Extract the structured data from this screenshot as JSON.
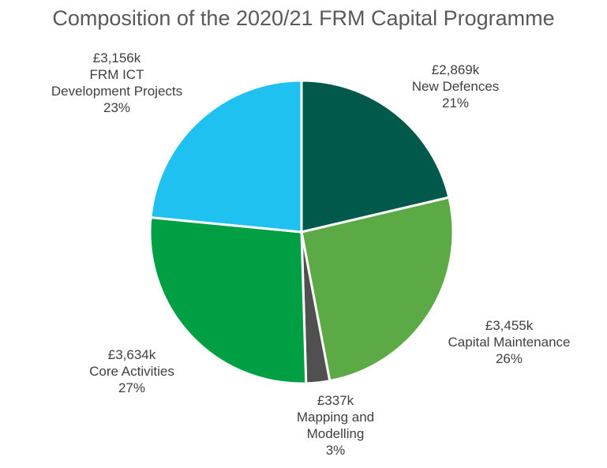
{
  "chart_data": {
    "type": "pie",
    "title": "Composition of the 2020/21 FRM Capital Programme",
    "slices": [
      {
        "label_lines": [
          "£2,869k",
          "New Defences",
          "21%"
        ],
        "value": 2869,
        "percent": 21,
        "color": "#00594A"
      },
      {
        "label_lines": [
          "£3,455k",
          "Capital Maintenance",
          "26%"
        ],
        "value": 3455,
        "percent": 26,
        "color": "#5BAA46"
      },
      {
        "label_lines": [
          "£337k",
          "Mapping and",
          "Modelling",
          "3%"
        ],
        "value": 337,
        "percent": 3,
        "color": "#505050"
      },
      {
        "label_lines": [
          "£3,634k",
          "Core Activities",
          "27%"
        ],
        "value": 3634,
        "percent": 27,
        "color": "#009F44"
      },
      {
        "label_lines": [
          "£3,156k",
          "FRM ICT",
          "Development Projects",
          "23%"
        ],
        "value": 3156,
        "percent": 23,
        "color": "#1FC1F0"
      }
    ]
  }
}
